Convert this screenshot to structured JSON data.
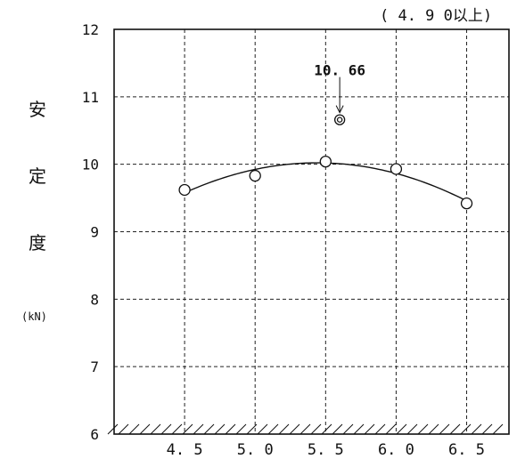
{
  "chart_data": {
    "type": "scatter",
    "x": [
      4.5,
      5.0,
      5.5,
      6.0,
      6.5
    ],
    "y": [
      9.62,
      9.83,
      10.04,
      9.93,
      9.42
    ],
    "x_tick_labels": [
      "4. 5",
      "5. 0",
      "5. 5",
      "6. 0",
      "6. 5"
    ],
    "y_tick_labels": [
      "6",
      "7",
      "8",
      "9",
      "10",
      "11",
      "12"
    ],
    "xlim": [
      4.0,
      6.8
    ],
    "ylim": [
      6,
      12
    ],
    "ylabel_chars": [
      "安",
      "定",
      "度"
    ],
    "ylabel_unit": "(kN)",
    "criterion": "( 4. 9 0以上)",
    "curve": "smooth fitted curve",
    "outlier": {
      "x": 5.6,
      "y": 10.66,
      "label": "10. 66"
    },
    "grid": true,
    "baseline_hatched": true
  }
}
